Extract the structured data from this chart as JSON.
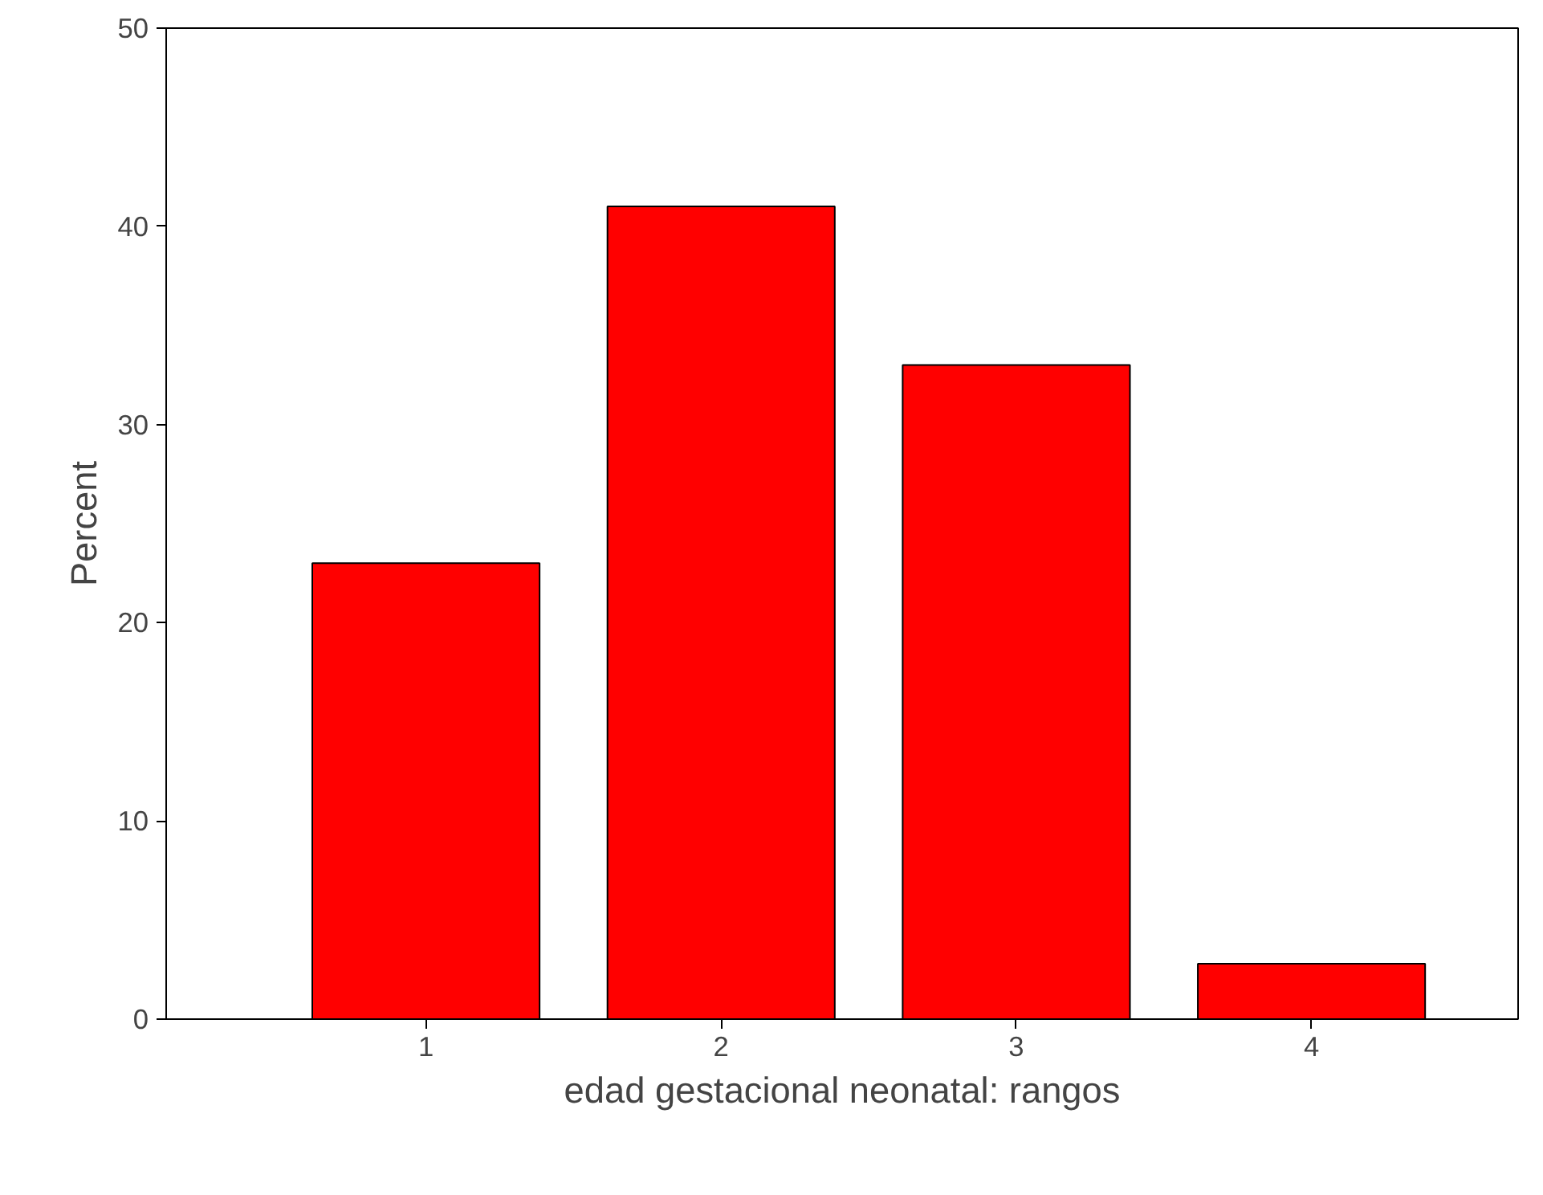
{
  "chart_data": {
    "type": "bar",
    "xlabel": "edad gestacional neonatal: rangos",
    "ylabel": "Percent",
    "categories": [
      "1",
      "2",
      "3",
      "4"
    ],
    "values": [
      23,
      41,
      33,
      2.8
    ],
    "color": "#ff0000",
    "ylim": [
      0,
      50
    ],
    "yticks": [
      0,
      10,
      20,
      30,
      40,
      50
    ],
    "grid": false
  }
}
